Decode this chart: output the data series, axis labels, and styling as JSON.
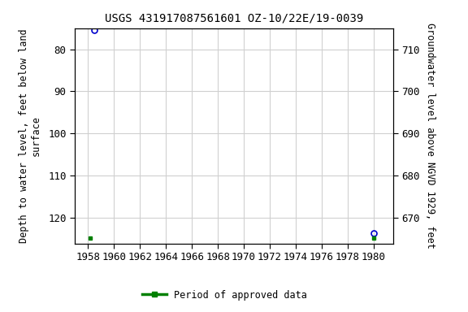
{
  "title": "USGS 431917087561601 OZ-10/22E/19-0039",
  "points": [
    {
      "x": 1958.5,
      "y_depth": 75.5
    },
    {
      "x": 1980.0,
      "y_depth": 123.5
    }
  ],
  "green_squares": [
    {
      "x": 1958.2,
      "y_depth": 124.8
    },
    {
      "x": 1980.0,
      "y_depth": 124.8
    }
  ],
  "xlim": [
    1957.0,
    1981.5
  ],
  "xticks": [
    1958,
    1960,
    1962,
    1964,
    1966,
    1968,
    1970,
    1972,
    1974,
    1976,
    1978,
    1980
  ],
  "ylim_left_top": 75,
  "ylim_left_bottom": 126,
  "yticks_left": [
    80,
    90,
    100,
    110,
    120
  ],
  "land_surface_elev": 790.0,
  "yticks_right": [
    670,
    680,
    690,
    700,
    710
  ],
  "ylabel_left": "Depth to water level, feet below land\nsurface",
  "ylabel_right": "Groundwater level above NGVD 1929, feet",
  "legend_label": "Period of approved data",
  "legend_color": "#008000",
  "point_color": "#0000cc",
  "grid_color": "#d0d0d0",
  "background_color": "#ffffff",
  "title_fontsize": 10,
  "label_fontsize": 8.5,
  "tick_fontsize": 9
}
